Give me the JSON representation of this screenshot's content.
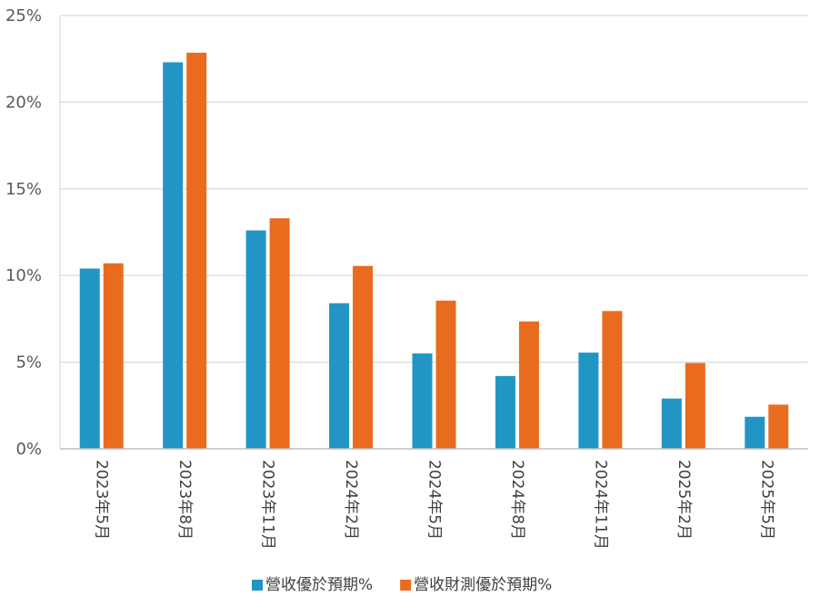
{
  "chart_data": {
    "type": "bar",
    "categories": [
      "2023年5月",
      "2023年8月",
      "2023年11月",
      "2024年2月",
      "2024年5月",
      "2024年8月",
      "2024年11月",
      "2025年2月",
      "2025年5月"
    ],
    "series": [
      {
        "name": "營收優於預期%",
        "color": "#2196C4",
        "values": [
          10.4,
          22.3,
          12.6,
          8.4,
          5.5,
          4.2,
          5.55,
          2.9,
          1.85
        ]
      },
      {
        "name": "營收財測優於預期%",
        "color": "#E96C1E",
        "values": [
          10.7,
          22.85,
          13.3,
          10.55,
          8.55,
          7.35,
          7.95,
          4.95,
          2.55
        ]
      }
    ],
    "y_ticks": [
      "0%",
      "5%",
      "10%",
      "15%",
      "20%",
      "25%"
    ],
    "ylim": [
      0,
      25
    ],
    "grid": true,
    "legend_position": "bottom-center"
  }
}
